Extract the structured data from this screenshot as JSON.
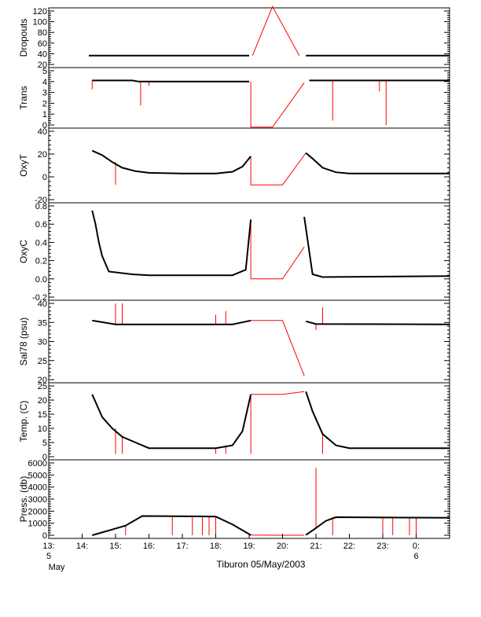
{
  "colors": {
    "data": "#000000",
    "flag": "#ff0000",
    "frame": "#000000",
    "background": "#ffffff"
  },
  "chart_data": {
    "type": "line",
    "title": "Tiburon 05/May/2003",
    "x_axis": {
      "ticks": [
        {
          "label": "13:",
          "date": "5",
          "sub": "May"
        },
        {
          "label": "14:"
        },
        {
          "label": "15:"
        },
        {
          "label": "16:"
        },
        {
          "label": "17:"
        },
        {
          "label": "18:"
        },
        {
          "label": "19:"
        },
        {
          "label": "20:"
        },
        {
          "label": "21:"
        },
        {
          "label": "22:"
        },
        {
          "label": "23:"
        },
        {
          "label": "0:",
          "date": "6"
        }
      ],
      "range_hours": [
        13,
        25
      ]
    },
    "gap": {
      "start": "19:05",
      "end": "20:40"
    },
    "panels": [
      {
        "id": "dropouts",
        "ylabel": "Dropouts",
        "ylim": [
          0,
          120
        ],
        "ticks": [
          "20",
          "40",
          "60",
          "80",
          "100",
          "120"
        ],
        "series": {
          "data": [
            [
              14.2,
              20
            ],
            [
              19.0,
              20
            ],
            [
              20.7,
              20
            ],
            [
              25.0,
              20
            ]
          ],
          "flag": [
            [
              19.1,
              20
            ],
            [
              19.7,
              130
            ],
            [
              20.5,
              20
            ]
          ]
        }
      },
      {
        "id": "trans",
        "ylabel": "Trans",
        "ylim": [
          0,
          5
        ],
        "ticks": [
          "0",
          "1",
          "2",
          "3",
          "4",
          "5"
        ],
        "series": {
          "data": [
            [
              14.3,
              4.1
            ],
            [
              15.5,
              4.1
            ],
            [
              15.7,
              4.0
            ],
            [
              19.0,
              4.0
            ],
            [
              20.8,
              4.1
            ],
            [
              25.0,
              4.1
            ]
          ],
          "flag": [
            [
              19.05,
              4.0
            ],
            [
              19.05,
              -0.2
            ],
            [
              19.7,
              -0.2
            ],
            [
              20.65,
              3.9
            ]
          ],
          "spikes": [
            [
              14.3,
              3.3
            ],
            [
              15.75,
              1.8
            ],
            [
              16.0,
              3.6
            ],
            [
              21.5,
              0.4
            ],
            [
              22.9,
              3.1
            ],
            [
              23.1,
              0.0
            ]
          ]
        }
      },
      {
        "id": "oxyt",
        "ylabel": "OxyT",
        "ylim": [
          -20,
          40
        ],
        "ticks": [
          "-20",
          "0",
          "20",
          "40"
        ],
        "series": {
          "data": [
            [
              14.3,
              23
            ],
            [
              14.6,
              19
            ],
            [
              14.9,
              13
            ],
            [
              15.2,
              8
            ],
            [
              15.6,
              5
            ],
            [
              16.0,
              3.5
            ],
            [
              17.0,
              3
            ],
            [
              18.0,
              3
            ],
            [
              18.5,
              4.5
            ],
            [
              18.8,
              9
            ],
            [
              19.05,
              18
            ],
            [
              20.7,
              21
            ],
            [
              20.9,
              16
            ],
            [
              21.2,
              8
            ],
            [
              21.6,
              4
            ],
            [
              22.0,
              3
            ],
            [
              25.0,
              3
            ]
          ],
          "flag": [
            [
              19.05,
              18
            ],
            [
              19.05,
              -7
            ],
            [
              20.0,
              -7
            ],
            [
              20.7,
              21
            ]
          ],
          "spikes": [
            [
              15.0,
              -7
            ]
          ]
        }
      },
      {
        "id": "oxyc",
        "ylabel": "OxyC",
        "ylim": [
          -0.2,
          0.8
        ],
        "ticks": [
          "-0.2",
          "0.0",
          "0.2",
          "0.4",
          "0.6",
          "0.8"
        ],
        "series": {
          "data": [
            [
              14.3,
              0.75
            ],
            [
              14.4,
              0.6
            ],
            [
              14.5,
              0.4
            ],
            [
              14.6,
              0.25
            ],
            [
              14.8,
              0.08
            ],
            [
              15.5,
              0.05
            ],
            [
              16.0,
              0.04
            ],
            [
              18.5,
              0.04
            ],
            [
              18.9,
              0.1
            ],
            [
              19.05,
              0.65
            ],
            [
              20.65,
              0.68
            ],
            [
              20.8,
              0.3
            ],
            [
              20.9,
              0.05
            ],
            [
              21.2,
              0.02
            ],
            [
              25.0,
              0.03
            ]
          ],
          "flag": [
            [
              19.05,
              0.65
            ],
            [
              19.05,
              0.0
            ],
            [
              20.0,
              0.0
            ],
            [
              20.65,
              0.35
            ]
          ],
          "spikes": []
        }
      },
      {
        "id": "sal78",
        "ylabel": "Sal78 (psu)",
        "ylim": [
          20,
          40
        ],
        "ticks": [
          "20",
          "25",
          "30",
          "35",
          "40"
        ],
        "series": {
          "data": [
            [
              14.3,
              35.5
            ],
            [
              15.0,
              34.5
            ],
            [
              18.5,
              34.5
            ],
            [
              19.05,
              35.5
            ],
            [
              20.7,
              35.3
            ],
            [
              21.0,
              34.6
            ],
            [
              25.0,
              34.5
            ]
          ],
          "flag": [
            [
              19.05,
              35.5
            ],
            [
              20.0,
              35.5
            ],
            [
              20.65,
              21
            ]
          ],
          "spikes": [
            [
              15.0,
              40
            ],
            [
              15.2,
              40
            ],
            [
              18.0,
              37
            ],
            [
              18.3,
              38
            ],
            [
              21.2,
              39
            ],
            [
              21.0,
              33
            ]
          ]
        }
      },
      {
        "id": "temp",
        "ylabel": "Temp. (C)",
        "ylim": [
          0,
          25
        ],
        "ticks": [
          "0",
          "5",
          "10",
          "15",
          "20",
          "25"
        ],
        "series": {
          "data": [
            [
              14.3,
              22
            ],
            [
              14.6,
              14
            ],
            [
              14.9,
              10
            ],
            [
              15.2,
              7
            ],
            [
              15.6,
              5
            ],
            [
              16.0,
              3
            ],
            [
              17.0,
              3
            ],
            [
              18.0,
              3
            ],
            [
              18.5,
              4
            ],
            [
              18.8,
              9
            ],
            [
              19.05,
              22
            ],
            [
              20.7,
              23
            ],
            [
              20.9,
              16
            ],
            [
              21.2,
              8
            ],
            [
              21.6,
              4
            ],
            [
              22.0,
              3
            ],
            [
              25.0,
              3
            ]
          ],
          "flag": [
            [
              19.05,
              22
            ],
            [
              20.0,
              22
            ],
            [
              20.65,
              23
            ]
          ],
          "spikes": [
            [
              15.0,
              1
            ],
            [
              15.2,
              1
            ],
            [
              18.0,
              1
            ],
            [
              18.3,
              1
            ],
            [
              21.2,
              1
            ],
            [
              19.05,
              1
            ]
          ]
        }
      },
      {
        "id": "press",
        "ylabel": "Press. (db)",
        "ylim": [
          0,
          6000
        ],
        "ticks": [
          "0",
          "1000",
          "2000",
          "3000",
          "4000",
          "5000",
          "6000"
        ],
        "series": {
          "data": [
            [
              14.3,
              0
            ],
            [
              14.8,
              400
            ],
            [
              15.3,
              800
            ],
            [
              15.8,
              1600
            ],
            [
              18.0,
              1550
            ],
            [
              18.5,
              900
            ],
            [
              19.05,
              20
            ],
            [
              20.7,
              20
            ],
            [
              21.0,
              600
            ],
            [
              21.3,
              1200
            ],
            [
              21.6,
              1500
            ],
            [
              25.0,
              1450
            ]
          ],
          "flag": [
            [
              19.05,
              20
            ],
            [
              20.0,
              0
            ],
            [
              20.65,
              0
            ]
          ],
          "spikes": [
            [
              15.3,
              0
            ],
            [
              16.7,
              0
            ],
            [
              17.3,
              0
            ],
            [
              17.6,
              0
            ],
            [
              17.8,
              0
            ],
            [
              18.0,
              0
            ],
            [
              21.0,
              5600
            ],
            [
              21.5,
              0
            ],
            [
              23.0,
              0
            ],
            [
              23.3,
              0
            ],
            [
              23.8,
              0
            ],
            [
              24.0,
              0
            ]
          ]
        }
      }
    ]
  }
}
